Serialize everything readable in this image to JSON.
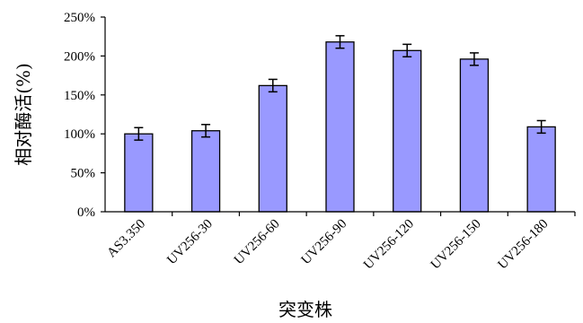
{
  "chart_data": {
    "type": "bar",
    "title": "",
    "xlabel": "突变株",
    "ylabel": "相对酶活(%)",
    "categories": [
      "AS3.350",
      "UV256-30",
      "UV256-60",
      "UV256-90",
      "UV256-120",
      "UV256-150",
      "UV256-180"
    ],
    "series": [
      {
        "values": [
          100,
          104,
          162,
          218,
          207,
          196,
          109
        ],
        "errors": [
          8,
          8,
          8,
          8,
          8,
          8,
          8
        ]
      }
    ],
    "ylim": [
      0,
      250
    ],
    "yticks": [
      0,
      50,
      100,
      150,
      200,
      250
    ],
    "ytick_labels": [
      "0%",
      "50%",
      "100%",
      "150%",
      "200%",
      "250%"
    ],
    "grid": false,
    "legend": "none",
    "colors": {
      "bar_fill": "#9999ff",
      "bar_stroke": "#000000",
      "axis": "#000000"
    }
  }
}
